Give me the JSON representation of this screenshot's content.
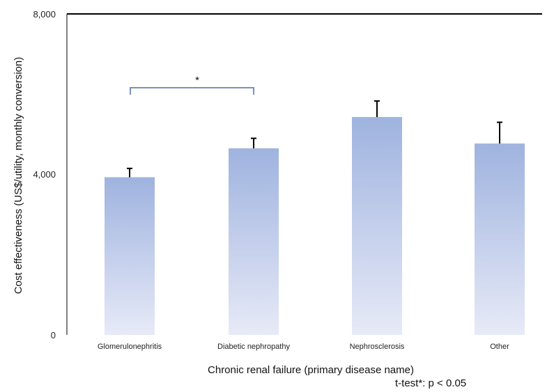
{
  "chart_data": {
    "type": "bar",
    "categories": [
      "Glomerulonephritis",
      "Diabetic nephropathy",
      "Nephrosclerosis",
      "Other"
    ],
    "values": [
      3930,
      4650,
      5430,
      4770
    ],
    "error_upper": [
      4150,
      4900,
      5830,
      5300
    ],
    "xlabel": "Chronic renal failure (primary disease name)",
    "ylabel": "Cost effectiveness (US$/utility, monthly conversion)",
    "ylim": [
      0,
      8000
    ],
    "yticks": [
      "0",
      "4,000",
      "8,000"
    ],
    "significance": {
      "from": "Glomerulonephritis",
      "to": "Diabetic nephropathy",
      "label": "*"
    },
    "footnote": "t-test*: p < 0.05",
    "grid": false,
    "colors": {
      "bar_top": "#9fb3df",
      "bar_bottom": "#e7eaf7",
      "bracket": "#4a6fa5",
      "axis": "#000000"
    }
  }
}
